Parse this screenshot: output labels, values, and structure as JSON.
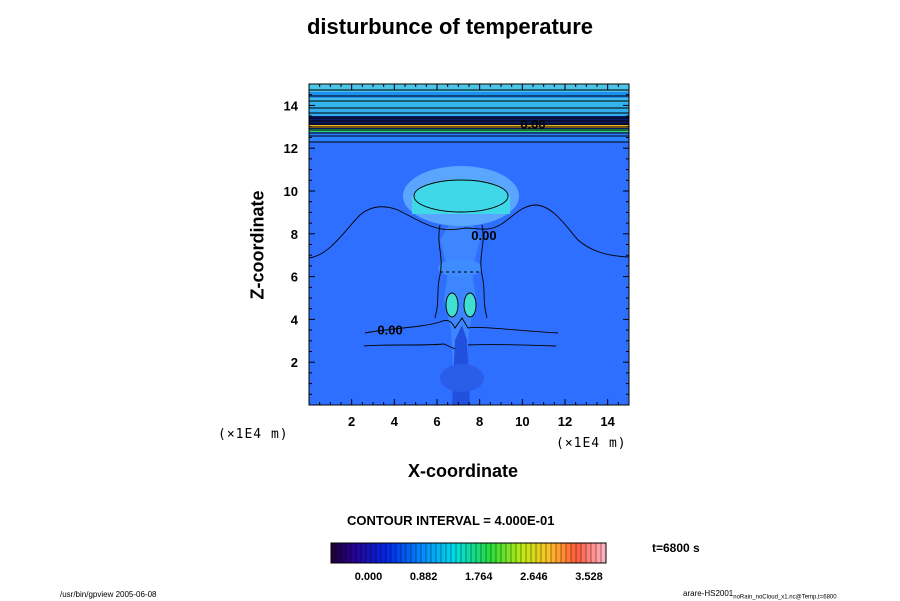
{
  "chart_data": {
    "type": "contour",
    "title": "disturbunce of temperature",
    "xlabel": "X-coordinate",
    "ylabel": "Z-coordinate",
    "x_unit": "(×1E4 m)",
    "z_unit": "(×1E4 m)",
    "xlim": [
      0,
      15
    ],
    "ylim": [
      0,
      15
    ],
    "xticks": [
      "2",
      "4",
      "6",
      "8",
      "10",
      "12",
      "14"
    ],
    "yticks": [
      "2",
      "4",
      "6",
      "8",
      "10",
      "12",
      "14"
    ],
    "contour_labels": [
      {
        "text": "0.00",
        "x": 8.2,
        "z": 7.7
      },
      {
        "text": "0.00",
        "x": 3.8,
        "z": 3.3
      },
      {
        "text": "0.00",
        "x": 10.5,
        "z": 12.9
      }
    ],
    "contour_interval_text": "CONTOUR INTERVAL = 4.000E-01",
    "time_text": "t=6800 s",
    "colorbar": {
      "min": -0.6,
      "max": 3.8,
      "tick_labels": [
        "0.000",
        "0.882",
        "1.764",
        "2.646",
        "3.528"
      ],
      "tick_values": [
        0.0,
        0.882,
        1.764,
        2.646,
        3.528
      ]
    }
  },
  "footer": {
    "left": "/usr/bin/gpview 2005-06-08",
    "right_main": "arare-HS2001",
    "right_sub": "noRain_noCloud_x1.nc@Temp,t=6800"
  },
  "colors": {
    "background_field": "#2f6fff",
    "contour_line": "#000000"
  }
}
